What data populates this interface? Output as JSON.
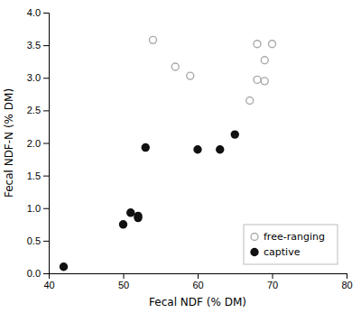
{
  "chart_data": {
    "type": "scatter",
    "xlabel": "Fecal NDF (% DM)",
    "ylabel": "Fecal NDF-N (% DM)",
    "series": [
      {
        "name": "free-ranging",
        "color": "#aaaaaa",
        "marker": "open-circle",
        "x": [
          54,
          57,
          59,
          67,
          68,
          68,
          69,
          69,
          70
        ],
        "values": [
          3.58,
          3.17,
          3.03,
          2.65,
          3.52,
          2.97,
          3.27,
          2.95,
          3.52
        ]
      },
      {
        "name": "captive",
        "color": "#111111",
        "marker": "circle",
        "x": [
          42,
          50,
          51,
          52,
          52,
          53,
          60,
          63,
          65
        ],
        "values": [
          0.1,
          0.75,
          0.93,
          0.88,
          0.85,
          1.93,
          1.9,
          1.9,
          2.13
        ]
      }
    ],
    "xlim": [
      40,
      80
    ],
    "ylim": [
      0,
      4.0
    ],
    "xticks": [
      40,
      50,
      60,
      70,
      80
    ],
    "yticks": [
      {
        "value": 0,
        "label": "0.0"
      },
      0.5,
      {
        "value": 1,
        "label": "1.0"
      },
      1.5,
      {
        "value": 2,
        "label": "2.0"
      },
      2.5,
      {
        "value": 3,
        "label": "3.0"
      },
      3.5,
      {
        "value": 4,
        "label": "4.0"
      }
    ],
    "legend": "lower right",
    "grid": false
  }
}
